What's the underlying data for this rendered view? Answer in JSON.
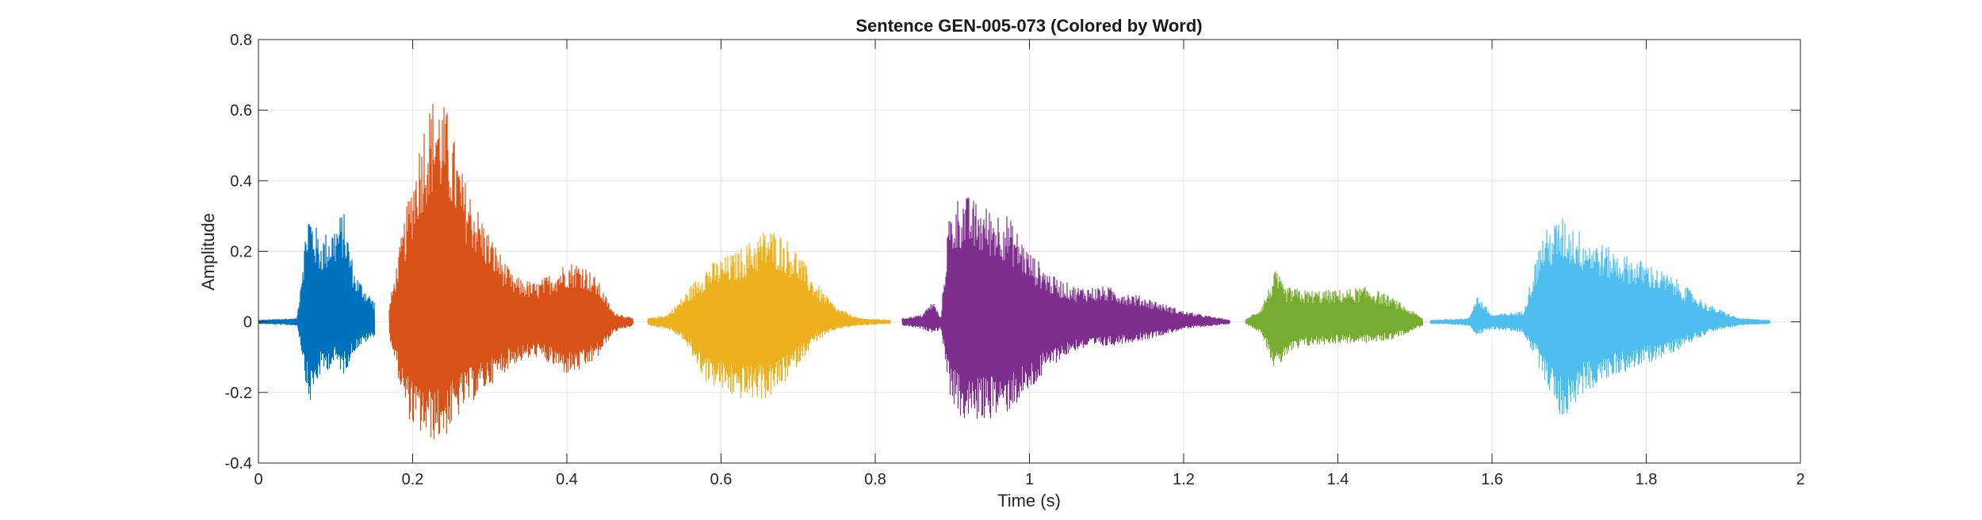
{
  "chart_data": {
    "type": "line",
    "title": "Sentence GEN-005-073 (Colored by Word)",
    "xlabel": "Time (s)",
    "ylabel": "Amplitude",
    "xlim": [
      0,
      2
    ],
    "ylim": [
      -0.4,
      0.8
    ],
    "x_ticks": [
      0,
      0.2,
      0.4,
      0.6,
      0.8,
      1,
      1.2,
      1.4,
      1.6,
      1.8,
      2
    ],
    "x_tick_labels": [
      "0",
      "0.2",
      "0.4",
      "0.6",
      "0.8",
      "1",
      "1.2",
      "1.4",
      "1.6",
      "1.8",
      "2"
    ],
    "y_ticks": [
      -0.4,
      -0.2,
      0,
      0.2,
      0.4,
      0.6,
      0.8
    ],
    "y_tick_labels": [
      "-0.4",
      "-0.2",
      "0",
      "0.2",
      "0.4",
      "0.6",
      "0.8"
    ],
    "grid": true,
    "legend": false,
    "series": [
      {
        "color": "#0072BD",
        "t_start": 0.0,
        "t_end": 0.15,
        "envelope": [
          [
            0.0,
            0.005,
            -0.005
          ],
          [
            0.05,
            0.01,
            -0.01
          ],
          [
            0.058,
            0.2,
            -0.12
          ],
          [
            0.065,
            0.33,
            -0.24
          ],
          [
            0.08,
            0.24,
            -0.15
          ],
          [
            0.1,
            0.28,
            -0.12
          ],
          [
            0.11,
            0.32,
            -0.15
          ],
          [
            0.125,
            0.14,
            -0.08
          ],
          [
            0.15,
            0.06,
            -0.04
          ]
        ]
      },
      {
        "color": "#D95319",
        "t_start": 0.17,
        "t_end": 0.485,
        "envelope": [
          [
            0.17,
            0.05,
            -0.05
          ],
          [
            0.19,
            0.3,
            -0.25
          ],
          [
            0.2,
            0.42,
            -0.3
          ],
          [
            0.215,
            0.58,
            -0.33
          ],
          [
            0.23,
            0.66,
            -0.34
          ],
          [
            0.245,
            0.6,
            -0.32
          ],
          [
            0.265,
            0.42,
            -0.25
          ],
          [
            0.3,
            0.25,
            -0.18
          ],
          [
            0.33,
            0.13,
            -0.12
          ],
          [
            0.36,
            0.11,
            -0.1
          ],
          [
            0.4,
            0.17,
            -0.15
          ],
          [
            0.42,
            0.17,
            -0.14
          ],
          [
            0.44,
            0.12,
            -0.1
          ],
          [
            0.46,
            0.03,
            -0.03
          ],
          [
            0.485,
            0.01,
            -0.01
          ]
        ]
      },
      {
        "color": "#EDB120",
        "t_start": 0.505,
        "t_end": 0.82,
        "envelope": [
          [
            0.505,
            0.01,
            -0.01
          ],
          [
            0.53,
            0.02,
            -0.02
          ],
          [
            0.55,
            0.07,
            -0.05
          ],
          [
            0.58,
            0.16,
            -0.17
          ],
          [
            0.62,
            0.2,
            -0.22
          ],
          [
            0.66,
            0.27,
            -0.22
          ],
          [
            0.68,
            0.25,
            -0.18
          ],
          [
            0.7,
            0.2,
            -0.12
          ],
          [
            0.72,
            0.12,
            -0.06
          ],
          [
            0.75,
            0.04,
            -0.02
          ],
          [
            0.78,
            0.01,
            -0.01
          ],
          [
            0.82,
            0.005,
            -0.005
          ]
        ]
      },
      {
        "color": "#7E2F8E",
        "t_start": 0.835,
        "t_end": 1.26,
        "envelope": [
          [
            0.835,
            0.01,
            -0.01
          ],
          [
            0.86,
            0.02,
            -0.02
          ],
          [
            0.875,
            0.06,
            -0.03
          ],
          [
            0.885,
            0.01,
            -0.02
          ],
          [
            0.895,
            0.3,
            -0.2
          ],
          [
            0.91,
            0.37,
            -0.28
          ],
          [
            0.94,
            0.33,
            -0.28
          ],
          [
            0.97,
            0.31,
            -0.26
          ],
          [
            1.0,
            0.2,
            -0.2
          ],
          [
            1.03,
            0.13,
            -0.12
          ],
          [
            1.06,
            0.1,
            -0.08
          ],
          [
            1.1,
            0.1,
            -0.07
          ],
          [
            1.15,
            0.07,
            -0.05
          ],
          [
            1.2,
            0.03,
            -0.02
          ],
          [
            1.26,
            0.005,
            -0.005
          ]
        ]
      },
      {
        "color": "#77AC30",
        "t_start": 1.28,
        "t_end": 1.51,
        "envelope": [
          [
            1.28,
            0.005,
            -0.005
          ],
          [
            1.3,
            0.04,
            -0.03
          ],
          [
            1.32,
            0.15,
            -0.15
          ],
          [
            1.33,
            0.1,
            -0.1
          ],
          [
            1.36,
            0.09,
            -0.07
          ],
          [
            1.4,
            0.09,
            -0.06
          ],
          [
            1.44,
            0.1,
            -0.06
          ],
          [
            1.47,
            0.07,
            -0.05
          ],
          [
            1.51,
            0.01,
            -0.01
          ]
        ]
      },
      {
        "color": "#4DBEEE",
        "t_start": 1.52,
        "t_end": 1.96,
        "envelope": [
          [
            1.52,
            0.005,
            -0.005
          ],
          [
            1.57,
            0.01,
            -0.01
          ],
          [
            1.58,
            0.08,
            -0.04
          ],
          [
            1.6,
            0.02,
            -0.02
          ],
          [
            1.64,
            0.03,
            -0.03
          ],
          [
            1.665,
            0.25,
            -0.15
          ],
          [
            1.69,
            0.3,
            -0.28
          ],
          [
            1.72,
            0.25,
            -0.2
          ],
          [
            1.76,
            0.2,
            -0.15
          ],
          [
            1.8,
            0.17,
            -0.12
          ],
          [
            1.84,
            0.12,
            -0.08
          ],
          [
            1.88,
            0.05,
            -0.03
          ],
          [
            1.92,
            0.01,
            -0.01
          ],
          [
            1.96,
            0.005,
            -0.005
          ]
        ]
      }
    ]
  }
}
